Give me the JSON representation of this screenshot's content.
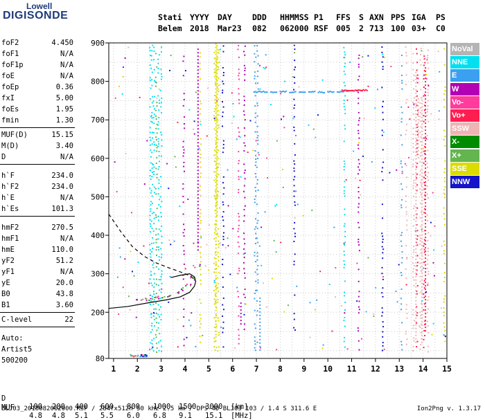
{
  "logo": {
    "top": "Lowell",
    "main": "DIGISONDE"
  },
  "header": {
    "labels": [
      "Stati",
      "YYYY",
      "DAY",
      "DDD",
      "HHMMSS",
      "P1",
      "FFS",
      "S",
      "AXN",
      "PPS",
      "IGA",
      "PS"
    ],
    "values": [
      "Belem",
      "2018",
      "Mar23",
      "082",
      "062000",
      "RSF",
      "005",
      "2",
      "713",
      "100",
      "03+",
      "C0"
    ]
  },
  "params": {
    "group1": [
      {
        "k": "foF2",
        "v": "4.450"
      },
      {
        "k": "foF1",
        "v": "N/A"
      },
      {
        "k": "foF1p",
        "v": "N/A"
      },
      {
        "k": "foE",
        "v": "N/A"
      },
      {
        "k": "foEp",
        "v": "0.36"
      },
      {
        "k": "fxI",
        "v": "5.00"
      },
      {
        "k": "foEs",
        "v": "1.95"
      },
      {
        "k": "fmin",
        "v": "1.30"
      }
    ],
    "group2": [
      {
        "k": "MUF(D)",
        "v": "15.15"
      },
      {
        "k": "M(D)",
        "v": "3.40"
      },
      {
        "k": "D",
        "v": "N/A"
      }
    ],
    "group3": [
      {
        "k": "h`F",
        "v": "234.0"
      },
      {
        "k": "h`F2",
        "v": "234.0"
      },
      {
        "k": "h`E",
        "v": "N/A"
      },
      {
        "k": "h`Es",
        "v": "101.3"
      }
    ],
    "group4": [
      {
        "k": "hmF2",
        "v": "270.5"
      },
      {
        "k": "hmF1",
        "v": "N/A"
      },
      {
        "k": "hmE",
        "v": "110.0"
      },
      {
        "k": "yF2",
        "v": "51.2"
      },
      {
        "k": "yF1",
        "v": "N/A"
      },
      {
        "k": "yE",
        "v": "20.0"
      },
      {
        "k": "B0",
        "v": "43.8"
      },
      {
        "k": "B1",
        "v": "3.60"
      }
    ],
    "clevel": {
      "k": "C-level",
      "v": "22"
    },
    "auto": [
      "Auto:",
      "Artist5",
      "500200"
    ]
  },
  "legend": [
    {
      "label": "NoVal",
      "color": "#b4b4b4"
    },
    {
      "label": "NNE",
      "color": "#00e0f0"
    },
    {
      "label": "E",
      "color": "#3ca0f0"
    },
    {
      "label": "W",
      "color": "#b400b4"
    },
    {
      "label": "Vo-",
      "color": "#ff3c9c"
    },
    {
      "label": "Vo+",
      "color": "#ff1e50"
    },
    {
      "label": "SSW",
      "color": "#f0b4b4"
    },
    {
      "label": "X-",
      "color": "#008c00"
    },
    {
      "label": "X+",
      "color": "#64b450"
    },
    {
      "label": "SSE",
      "color": "#dcdc00"
    },
    {
      "label": "NNW",
      "color": "#1414c8"
    }
  ],
  "chart_data": {
    "type": "scatter",
    "title": "",
    "xlabel": "",
    "ylabel": "",
    "xlim": [
      0.8,
      15
    ],
    "ylim": [
      80,
      900
    ],
    "xticks": [
      1,
      2,
      3,
      4,
      5,
      6,
      7,
      8,
      9,
      10,
      11,
      12,
      13,
      14,
      15
    ],
    "yticks": [
      80,
      200,
      300,
      400,
      500,
      600,
      700,
      800,
      900
    ],
    "grid": true,
    "series": [
      {
        "name": "profile",
        "style": "solid",
        "x": [
          0.8,
          1.6,
          2.5,
          3.2,
          3.8,
          4.2,
          4.4,
          4.45,
          4.4,
          4.2,
          3.8,
          3.4
        ],
        "y": [
          210,
          215,
          225,
          232,
          240,
          252,
          268,
          280,
          292,
          300,
          296,
          290
        ]
      },
      {
        "name": "extrapolation",
        "style": "dashed",
        "x": [
          0.8,
          1.3,
          1.8,
          2.3,
          2.8,
          3.3,
          3.8,
          4.2,
          4.4
        ],
        "y": [
          455,
          410,
          370,
          345,
          328,
          316,
          305,
          295,
          285
        ]
      },
      {
        "name": "trace",
        "style": "points",
        "x": [
          2.1,
          2.4,
          2.7,
          3.0,
          3.3,
          3.6,
          3.9,
          4.1,
          4.3,
          4.5
        ],
        "y": [
          232,
          234,
          236,
          239,
          243,
          250,
          260,
          272,
          292,
          320
        ]
      },
      {
        "name": "E",
        "style": "points",
        "x": [
          6.9,
          7.2,
          7.6,
          8.0,
          8.4,
          8.8,
          9.2,
          9.6,
          10.0,
          10.4
        ],
        "y": [
          773,
          773,
          772,
          773,
          772,
          773,
          773,
          772,
          773,
          773
        ]
      },
      {
        "name": "Vo+",
        "style": "points",
        "x": [
          10.6,
          10.8,
          11.0,
          11.2,
          11.4
        ],
        "y": [
          776,
          776,
          776,
          776,
          777
        ]
      }
    ]
  },
  "bottom": {
    "d_label": "D",
    "d_values": [
      "100",
      "200",
      "400",
      "600",
      "800",
      "1000",
      "1500",
      "3000",
      "[km]"
    ],
    "muf_label": "MUF",
    "muf_values": [
      "4.8",
      "4.8",
      "5.1",
      "5.5",
      "6.0",
      "6.8",
      "9.1",
      "15.1",
      "[MHz]"
    ]
  },
  "footer": {
    "line": "BLJ03_2018082062000.RSF / 284fx512h 50 kHz 2.5 km / DPS-4D BLJ03 103 / 1.4 S 311.6 E",
    "version": "Ion2Png v. 1.3.17"
  }
}
